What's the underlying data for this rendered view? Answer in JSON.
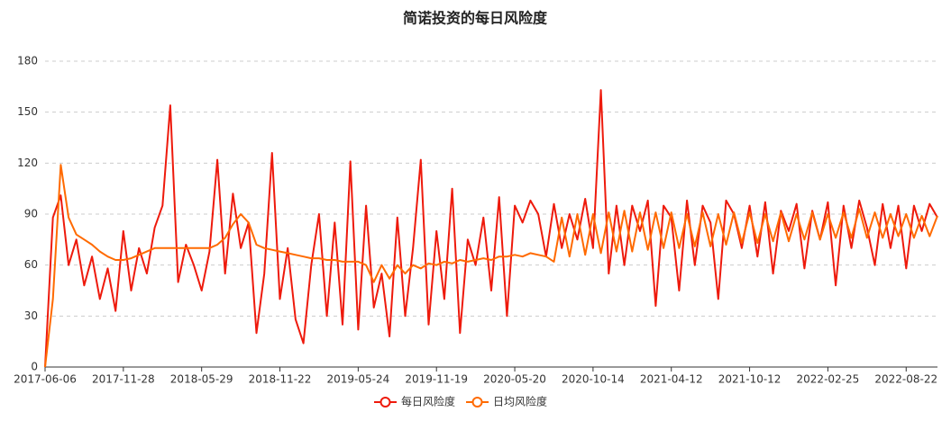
{
  "chart_data": {
    "type": "line",
    "title": "简诺投资的每日风险度",
    "categories": [
      "2017-06-06",
      null,
      null,
      null,
      null,
      null,
      null,
      null,
      null,
      null,
      "2017-11-28",
      null,
      null,
      null,
      null,
      null,
      null,
      null,
      null,
      null,
      "2018-05-29",
      null,
      null,
      null,
      null,
      null,
      null,
      null,
      null,
      null,
      "2018-11-22",
      null,
      null,
      null,
      null,
      null,
      null,
      null,
      null,
      null,
      "2019-05-24",
      null,
      null,
      null,
      null,
      null,
      null,
      null,
      null,
      null,
      "2019-11-19",
      null,
      null,
      null,
      null,
      null,
      null,
      null,
      null,
      null,
      "2020-05-20",
      null,
      null,
      null,
      null,
      null,
      null,
      null,
      null,
      null,
      "2020-10-14",
      null,
      null,
      null,
      null,
      null,
      null,
      null,
      null,
      null,
      "2021-04-12",
      null,
      null,
      null,
      null,
      null,
      null,
      null,
      null,
      null,
      "2021-10-12",
      null,
      null,
      null,
      null,
      null,
      null,
      null,
      null,
      null,
      "2022-02-25",
      null,
      null,
      null,
      null,
      null,
      null,
      null,
      null,
      null,
      "2022-08-22",
      null,
      null,
      null,
      null
    ],
    "series": [
      {
        "name": "每日风险度",
        "color": "#ee1a0c",
        "values": [
          0,
          88,
          101,
          60,
          75,
          48,
          65,
          40,
          58,
          33,
          80,
          45,
          70,
          55,
          82,
          95,
          154,
          50,
          72,
          60,
          45,
          68,
          122,
          55,
          102,
          70,
          85,
          20,
          55,
          126,
          40,
          70,
          28,
          14,
          60,
          90,
          30,
          85,
          25,
          121,
          22,
          95,
          35,
          55,
          18,
          88,
          30,
          70,
          122,
          25,
          80,
          40,
          105,
          20,
          75,
          60,
          88,
          45,
          100,
          30,
          95,
          85,
          98,
          90,
          65,
          96,
          70,
          90,
          75,
          99,
          70,
          163,
          55,
          95,
          60,
          95,
          80,
          98,
          36,
          95,
          88,
          45,
          98,
          60,
          95,
          85,
          40,
          98,
          90,
          70,
          95,
          65,
          97,
          55,
          92,
          80,
          96,
          58,
          92,
          75,
          97,
          48,
          95,
          70,
          98,
          82,
          60,
          96,
          70,
          95,
          58,
          95,
          80,
          96,
          88
        ]
      },
      {
        "name": "日均风险度",
        "color": "#ff6a00",
        "values": [
          0,
          40,
          119,
          88,
          78,
          75,
          72,
          68,
          65,
          63,
          63,
          64,
          66,
          68,
          70,
          70,
          70,
          70,
          70,
          70,
          70,
          70,
          72,
          76,
          84,
          90,
          85,
          72,
          70,
          69,
          68,
          67,
          66,
          65,
          64,
          64,
          63,
          63,
          62,
          62,
          62,
          60,
          50,
          60,
          52,
          60,
          55,
          60,
          58,
          61,
          60,
          62,
          61,
          63,
          62,
          63,
          64,
          63,
          65,
          65,
          66,
          65,
          67,
          66,
          65,
          62,
          88,
          65,
          90,
          66,
          90,
          67,
          91,
          68,
          92,
          68,
          91,
          69,
          91,
          70,
          91,
          70,
          90,
          71,
          91,
          71,
          90,
          72,
          91,
          73,
          91,
          73,
          90,
          74,
          91,
          74,
          90,
          75,
          91,
          75,
          90,
          76,
          91,
          76,
          93,
          76,
          91,
          76,
          90,
          77,
          90,
          76,
          89,
          77,
          89
        ]
      }
    ],
    "ylim": [
      0,
      180
    ],
    "yticks": [
      0,
      30,
      60,
      90,
      120,
      150,
      180
    ],
    "grid": true
  }
}
